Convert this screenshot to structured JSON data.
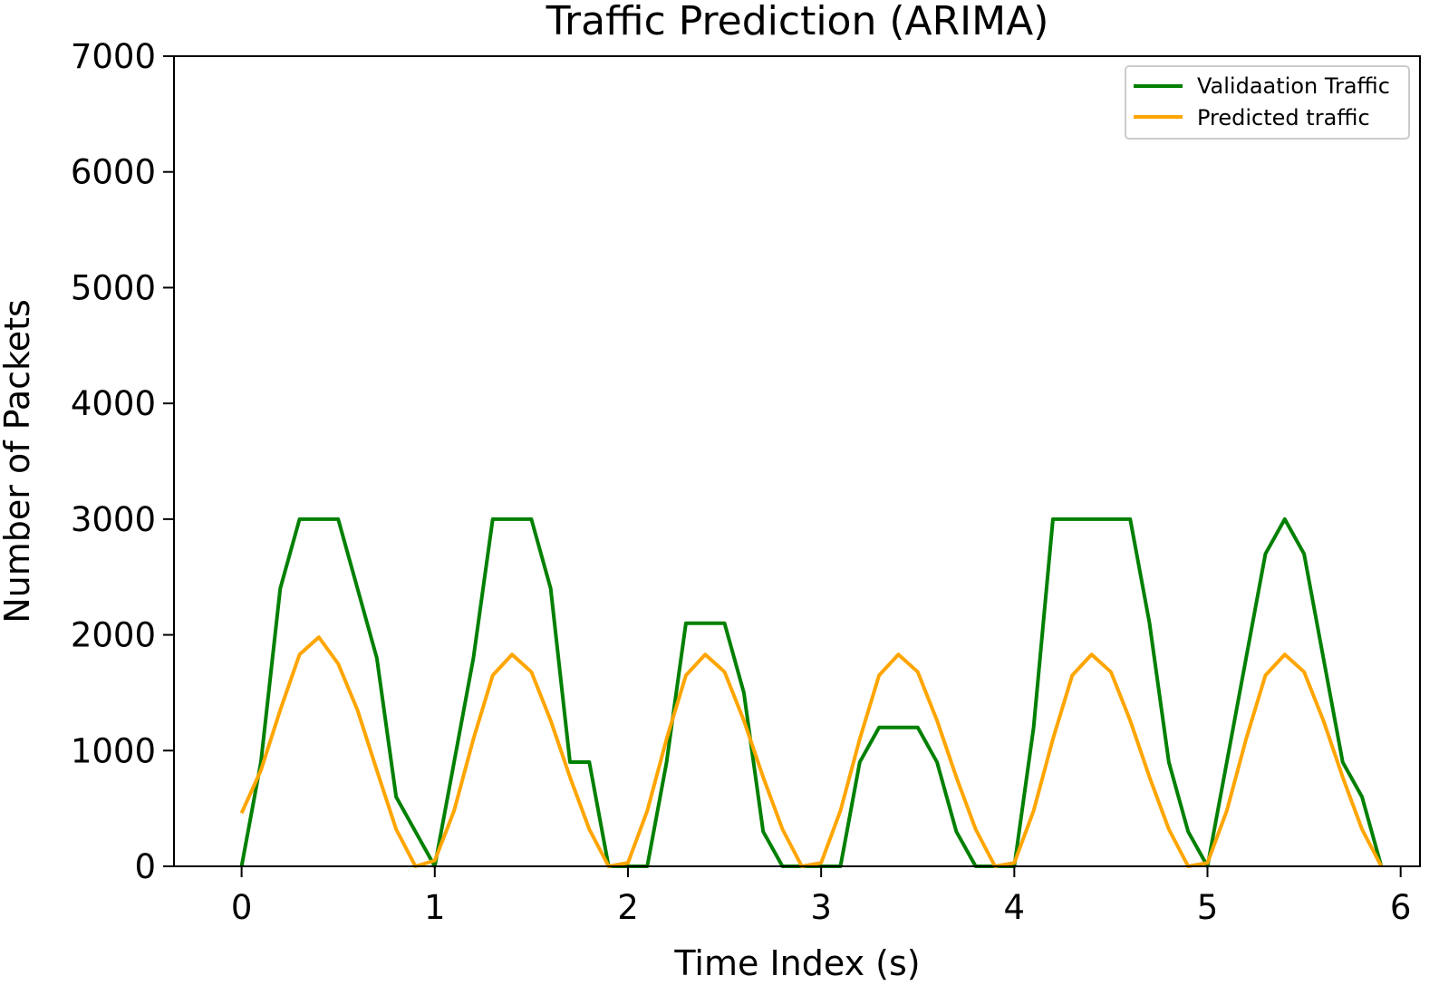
{
  "chart_data": {
    "type": "line",
    "title": "Traffic Prediction (ARIMA)",
    "xlabel": "Time Index (s)",
    "ylabel": "Number of Packets",
    "xlim": [
      -0.35,
      6.1
    ],
    "ylim": [
      0,
      7000
    ],
    "xticks": [
      0,
      1,
      2,
      3,
      4,
      5,
      6
    ],
    "yticks": [
      0,
      1000,
      2000,
      3000,
      4000,
      5000,
      6000,
      7000
    ],
    "grid": false,
    "legend_position": "top-right",
    "x": [
      0.0,
      0.1,
      0.2,
      0.3,
      0.4,
      0.5,
      0.6,
      0.7,
      0.8,
      0.9,
      1.0,
      1.1,
      1.2,
      1.3,
      1.4,
      1.5,
      1.6,
      1.7,
      1.8,
      1.9,
      2.0,
      2.1,
      2.2,
      2.3,
      2.4,
      2.5,
      2.6,
      2.7,
      2.8,
      2.9,
      3.0,
      3.1,
      3.2,
      3.3,
      3.4,
      3.5,
      3.6,
      3.7,
      3.8,
      3.9,
      4.0,
      4.1,
      4.2,
      4.3,
      4.4,
      4.5,
      4.6,
      4.7,
      4.8,
      4.9,
      5.0,
      5.1,
      5.2,
      5.3,
      5.4,
      5.5,
      5.6,
      5.7,
      5.8,
      5.9
    ],
    "series": [
      {
        "name": "Validaation Traffic",
        "color": "#008000",
        "values": [
          0,
          900,
          2400,
          3000,
          3000,
          3000,
          2400,
          1800,
          600,
          300,
          0,
          900,
          1800,
          3000,
          3000,
          3000,
          2400,
          900,
          900,
          0,
          0,
          0,
          900,
          2100,
          2100,
          2100,
          1500,
          300,
          0,
          0,
          0,
          0,
          900,
          1200,
          1200,
          1200,
          900,
          300,
          0,
          0,
          0,
          1200,
          3000,
          3000,
          3000,
          3000,
          3000,
          2100,
          900,
          300,
          0,
          900,
          1800,
          2700,
          3000,
          2700,
          1800,
          900,
          600,
          0
        ]
      },
      {
        "name": "Predicted traffic",
        "color": "#FFA500",
        "values": [
          460,
          830,
          1350,
          1830,
          1980,
          1750,
          1350,
          830,
          320,
          0,
          50,
          480,
          1100,
          1650,
          1830,
          1680,
          1260,
          770,
          320,
          0,
          30,
          480,
          1100,
          1650,
          1830,
          1680,
          1260,
          770,
          320,
          0,
          30,
          480,
          1100,
          1650,
          1830,
          1680,
          1260,
          770,
          320,
          0,
          30,
          480,
          1100,
          1650,
          1830,
          1680,
          1260,
          770,
          320,
          0,
          30,
          480,
          1100,
          1650,
          1830,
          1680,
          1260,
          770,
          320,
          0
        ]
      }
    ]
  }
}
